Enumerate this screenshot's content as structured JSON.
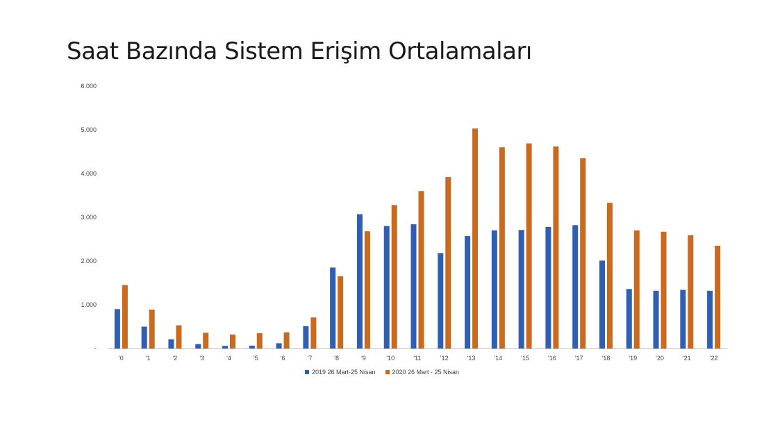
{
  "slide": {
    "title": "Saat Bazında Sistem Erişim Ortalamaları"
  },
  "colors": {
    "series_2019": "#2e5fb2",
    "series_2020": "#c96a1f"
  },
  "chart_data": {
    "type": "bar",
    "title": "Saat Bazında Sistem Erişim Ortalamaları",
    "xlabel": "",
    "ylabel": "",
    "categories": [
      "'0",
      "'1",
      "'2",
      "'3",
      "'4",
      "'5",
      "'6",
      "'7",
      "'8",
      "'9",
      "'10",
      "'11",
      "'12",
      "'13",
      "'14",
      "'15",
      "'16",
      "'17",
      "'18",
      "'19",
      "'20",
      "'21",
      "'22"
    ],
    "series": [
      {
        "name": "2019 26 Mart-25 Nisan",
        "values": [
          900,
          500,
          210,
          100,
          60,
          65,
          120,
          510,
          1850,
          3070,
          2800,
          2840,
          2180,
          2570,
          2700,
          2710,
          2780,
          2820,
          2010,
          1360,
          1320,
          1340,
          1320
        ]
      },
      {
        "name": "2020 26 Mart - 25 Nisan",
        "values": [
          1450,
          890,
          530,
          360,
          320,
          350,
          370,
          710,
          1650,
          2680,
          3280,
          3600,
          3920,
          5030,
          4600,
          4690,
          4620,
          4350,
          3330,
          2700,
          2670,
          2590,
          2350
        ]
      }
    ],
    "ylim": [
      0,
      6000
    ],
    "yticks": [
      0,
      1000,
      2000,
      3000,
      4000,
      5000,
      6000
    ],
    "ytick_labels": [
      "-",
      "1.000",
      "2.000",
      "3.000",
      "4.000",
      "5.000",
      "6.000"
    ],
    "grid": false,
    "legend_position": "bottom-center"
  }
}
